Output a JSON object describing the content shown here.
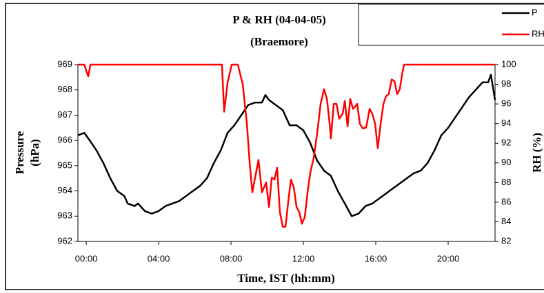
{
  "chart_data": {
    "type": "line",
    "title": "P & RH (04-04-05)",
    "subtitle": "(Braemore)",
    "x_label": "Time, IST (hh:mm)",
    "y_label": [
      "Pressure",
      "(hPa)"
    ],
    "y2_label": "RH  (%)",
    "xlim": [
      -0.46,
      22.59
    ],
    "xticks": [
      {
        "value": 0,
        "label": "00:00"
      },
      {
        "value": 4,
        "label": "04:00"
      },
      {
        "value": 8,
        "label": "08:00"
      },
      {
        "value": 12,
        "label": "12:00"
      },
      {
        "value": 16,
        "label": "16:00"
      },
      {
        "value": 20,
        "label": "20:00"
      }
    ],
    "ylim": [
      962,
      969
    ],
    "yticks": [
      962,
      963,
      964,
      965,
      966,
      967,
      968,
      969
    ],
    "y2lim": [
      82,
      100
    ],
    "y2ticks": [
      82,
      84,
      86,
      88,
      90,
      92,
      94,
      96,
      98,
      100
    ],
    "grid": false,
    "legend": "top-right",
    "series": [
      {
        "name": "P",
        "color": "#000000",
        "x": [
          -0.46,
          -0.11,
          0.19,
          0.57,
          0.95,
          1.33,
          1.71,
          2.1,
          2.29,
          2.67,
          2.86,
          3.24,
          3.62,
          4.0,
          4.38,
          4.76,
          5.14,
          5.52,
          5.9,
          6.29,
          6.67,
          7.05,
          7.43,
          7.81,
          8.19,
          8.57,
          8.95,
          9.33,
          9.71,
          9.9,
          10.1,
          10.48,
          10.86,
          11.24,
          11.62,
          12.0,
          12.38,
          12.76,
          13.14,
          13.52,
          13.9,
          14.29,
          14.67,
          15.05,
          15.43,
          15.81,
          16.19,
          16.57,
          16.95,
          17.33,
          17.71,
          18.1,
          18.48,
          18.86,
          19.24,
          19.62,
          20.0,
          20.38,
          20.76,
          21.14,
          21.52,
          21.9,
          22.21,
          22.36,
          22.59
        ],
        "values": [
          966.2,
          966.3,
          966.0,
          965.6,
          965.1,
          964.5,
          964.0,
          963.8,
          963.5,
          963.4,
          963.5,
          963.2,
          963.1,
          963.2,
          963.4,
          963.5,
          963.6,
          963.8,
          964.0,
          964.2,
          964.5,
          965.1,
          965.6,
          966.3,
          966.6,
          967.0,
          967.4,
          967.5,
          967.5,
          967.8,
          967.6,
          967.4,
          967.2,
          966.6,
          966.6,
          966.4,
          965.9,
          965.2,
          964.8,
          964.6,
          964.0,
          963.5,
          963.0,
          963.1,
          963.4,
          963.5,
          963.7,
          963.9,
          964.1,
          964.3,
          964.5,
          964.7,
          964.8,
          965.1,
          965.6,
          966.2,
          966.5,
          966.9,
          967.3,
          967.7,
          968.0,
          968.3,
          968.3,
          968.6,
          967.6
        ]
      },
      {
        "name": "RH",
        "color": "#ff0000",
        "axis": "y2",
        "x": [
          -0.46,
          -0.11,
          0.11,
          0.23,
          7.5,
          7.62,
          7.81,
          8.04,
          8.38,
          8.65,
          8.88,
          9.03,
          9.18,
          9.33,
          9.52,
          9.71,
          9.94,
          10.1,
          10.25,
          10.4,
          10.55,
          10.7,
          10.86,
          11.01,
          11.16,
          11.31,
          11.47,
          11.62,
          11.77,
          11.92,
          12.08,
          12.23,
          12.38,
          12.57,
          12.76,
          12.95,
          13.14,
          13.3,
          13.45,
          13.52,
          13.68,
          13.83,
          13.98,
          14.17,
          14.29,
          14.44,
          14.59,
          14.74,
          14.97,
          15.12,
          15.28,
          15.47,
          15.66,
          15.81,
          15.96,
          16.11,
          16.27,
          16.42,
          16.57,
          16.72,
          16.88,
          17.03,
          17.18,
          17.33,
          17.45,
          17.56,
          22.59
        ],
        "values": [
          100,
          100,
          98.8,
          100,
          100,
          95.2,
          98.2,
          100,
          100,
          98,
          94,
          90,
          87,
          88.5,
          90.3,
          87,
          88,
          85.5,
          88.5,
          88.3,
          89.5,
          85,
          83.5,
          83.5,
          86,
          88.3,
          87.5,
          85.5,
          85,
          83.8,
          84.5,
          87,
          89,
          90.5,
          93,
          96,
          97.5,
          96.5,
          94,
          92.5,
          96,
          96,
          94.5,
          95,
          96.3,
          93.7,
          96.5,
          95.5,
          96,
          94,
          93.5,
          93.6,
          95.5,
          95,
          94,
          91.5,
          94,
          96,
          96.8,
          97,
          98.5,
          98.3,
          97,
          97.5,
          99,
          100,
          100
        ]
      }
    ]
  }
}
